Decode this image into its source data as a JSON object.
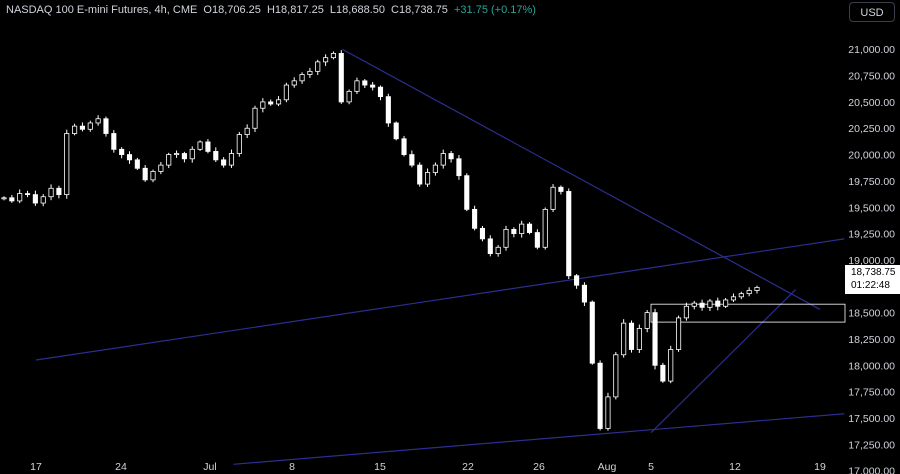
{
  "header": {
    "symbol": "NASDAQ 100 E-mini Futures, 4h, CME",
    "open": "O18,706.25",
    "high": "H18,817.25",
    "low": "L18,688.50",
    "close": "C18,738.75",
    "change": "+31.75 (+0.17%)"
  },
  "currency_button": "USD",
  "price_tag": {
    "price": "18,738.75",
    "countdown": "01:22:48"
  },
  "colors": {
    "background": "#000000",
    "candles": "#ffffff",
    "trendlines": "#2b2e8f",
    "text": "#d1d4dc",
    "zone_border": "#ffffff"
  },
  "chart_data": {
    "type": "candlestick",
    "title": "",
    "xlabel": "",
    "ylabel": "",
    "ylim": [
      17120,
      21230
    ],
    "y_ticks": [
      "21,000.00",
      "20,750.00",
      "20,500.00",
      "20,250.00",
      "20,000.00",
      "19,750.00",
      "19,500.00",
      "19,250.00",
      "19,000.00",
      "18,750.00",
      "18,500.00",
      "18,250.00",
      "18,000.00",
      "17,750.00",
      "17,500.00",
      "17,250.00",
      "17,000.00"
    ],
    "x_ticks": [
      "17",
      "24",
      "Jul",
      "8",
      "15",
      "22",
      "26",
      "Aug",
      "5",
      "12",
      "19"
    ],
    "series": [
      {
        "values": [
          19590,
          19560,
          19630,
          19620,
          19540,
          19600,
          19680,
          19620,
          20200,
          20270,
          20240,
          20300,
          20340,
          20200,
          20050,
          20000,
          19950,
          19870,
          19760,
          19840,
          19900,
          20000,
          20010,
          19960,
          20050,
          20120,
          20030,
          19950,
          19900,
          20010,
          20190,
          20250,
          20440,
          20500,
          20480,
          20520,
          20660,
          20700,
          20760,
          20790,
          20880,
          20920,
          20960,
          20500,
          20600,
          20700,
          20660,
          20640,
          20550,
          20300,
          20150,
          20000,
          19900,
          19720,
          19830,
          19900,
          20010,
          19960,
          19800,
          19480,
          19300,
          19200,
          19060,
          19120,
          19290,
          19250,
          19340,
          19260,
          19120,
          19480,
          19690,
          19650,
          18850,
          18760,
          18600,
          18020,
          17400,
          17700,
          18100,
          18400,
          18150,
          18350,
          18500,
          18000,
          17850,
          18150,
          18450,
          18560,
          18590,
          18550,
          18610,
          18560,
          18620,
          18650,
          18680,
          18710,
          18738.75
        ]
      }
    ],
    "trendlines": [
      {
        "from": {
          "x": "Jul 12",
          "y": 21000
        },
        "to": {
          "x": "Aug 19",
          "y": 18530
        }
      },
      {
        "from": {
          "x": "Jun 17",
          "y": 18050
        },
        "to": {
          "x": "Aug 21",
          "y": 19200
        }
      },
      {
        "from": {
          "x": "Jul 3",
          "y": 17060
        },
        "to": {
          "x": "Aug 21",
          "y": 17540
        }
      },
      {
        "from": {
          "x": "Aug 5",
          "y": 17360
        },
        "to": {
          "x": "Aug 17",
          "y": 18720
        }
      }
    ],
    "zones": [
      {
        "y_low": 18410,
        "y_high": 18580,
        "from": "Aug 5"
      }
    ],
    "grid": false,
    "legend": "none"
  }
}
